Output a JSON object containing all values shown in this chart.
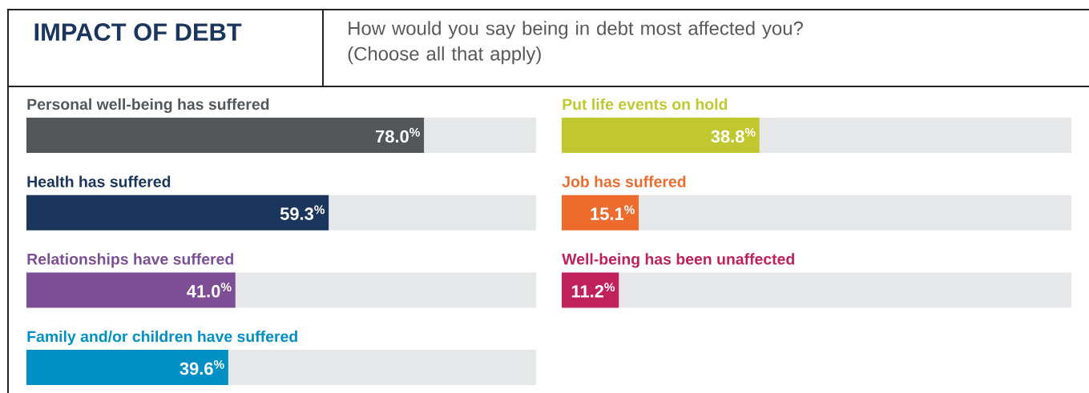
{
  "chart_data": [
    {
      "type": "bar",
      "orientation": "horizontal",
      "title": "IMPACT OF DEBT",
      "subtitle": "How would you say being in debt most affected you? (Choose all that apply)",
      "categories": [
        "Personal well-being has suffered",
        "Health has suffered",
        "Relationships have suffered",
        "Family and/or children have suffered"
      ],
      "values": [
        78.0,
        59.3,
        41.0,
        39.6
      ],
      "colors": [
        "#53575a",
        "#1b365d",
        "#7d4e96",
        "#0090c5"
      ],
      "value_labels": [
        "78.0$^{%}$",
        "59.3$^{%}$",
        "41.0$^{%}$",
        "39.6$^{%}$"
      ],
      "xlim": [
        0,
        100
      ]
    },
    {
      "type": "bar",
      "orientation": "horizontal",
      "categories": [
        "Put life events on hold",
        "Job has suffered",
        "Well-being has been unaffected"
      ],
      "values": [
        38.8,
        15.1,
        11.2
      ],
      "colors": [
        "#c1c72e",
        "#ec6b2d",
        "#c1215a"
      ],
      "value_labels": [
        "38.8$^{%}$",
        "15.1$^{%}$",
        "11.2$^{%}$"
      ],
      "xlim": [
        0,
        100
      ]
    }
  ]
}
